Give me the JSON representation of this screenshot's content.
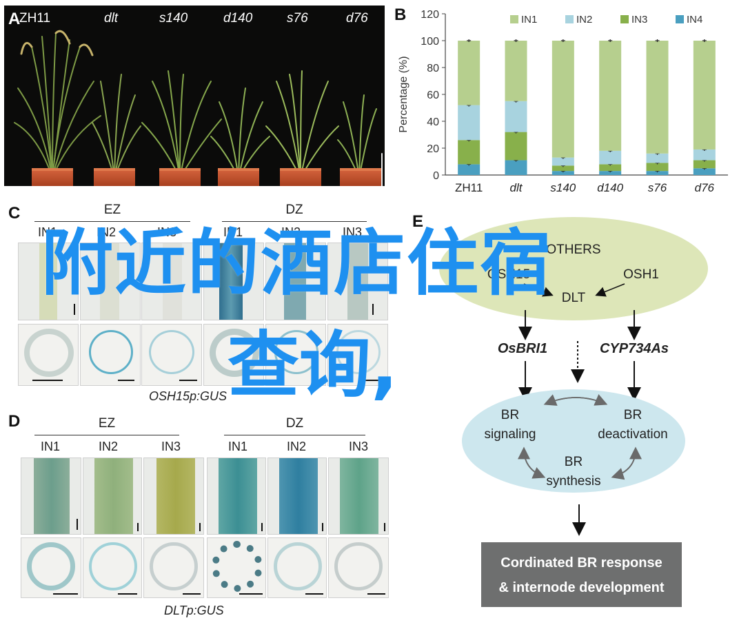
{
  "panels": {
    "A": "A",
    "B": "B",
    "C": "C",
    "D": "D",
    "E": "E"
  },
  "panelA": {
    "labels": [
      "ZH11",
      "dlt",
      "s140",
      "d140",
      "s76",
      "d76"
    ]
  },
  "chart_data": {
    "type": "bar",
    "stacked": true,
    "categories": [
      "ZH11",
      "dlt",
      "s140",
      "d140",
      "s76",
      "d76"
    ],
    "ylabel": "Percentage (%)",
    "ylim": [
      0,
      120
    ],
    "yticks": [
      0,
      20,
      40,
      60,
      80,
      100,
      120
    ],
    "legend_position": "top",
    "series": [
      {
        "name": "IN4",
        "color": "#4a9fc0",
        "values": [
          8,
          11,
          3,
          3,
          3,
          5
        ]
      },
      {
        "name": "IN3",
        "color": "#88b04b",
        "values": [
          18,
          21,
          4,
          5,
          6,
          6
        ]
      },
      {
        "name": "IN2",
        "color": "#a8d3df",
        "values": [
          26,
          23,
          6,
          10,
          7,
          8
        ]
      },
      {
        "name": "IN1",
        "color": "#b6cf8e",
        "values": [
          48,
          45,
          87,
          82,
          84,
          81
        ]
      }
    ]
  },
  "panelC": {
    "groups": [
      "EZ",
      "DZ"
    ],
    "columns": [
      "IN1",
      "IN2",
      "IN3",
      "IN1",
      "IN2",
      "IN3"
    ],
    "caption": "OSH15p:GUS"
  },
  "panelD": {
    "groups": [
      "EZ",
      "DZ"
    ],
    "columns": [
      "IN1",
      "IN2",
      "IN3",
      "IN1",
      "IN2",
      "IN3"
    ],
    "caption": "DLTp:GUS"
  },
  "panelE": {
    "top_nodes": [
      "OTHERS",
      "OSH15",
      "OSH1",
      "DLT"
    ],
    "genes": [
      "OsBRI1",
      "CYP734As"
    ],
    "cycle_nodes": [
      "BR",
      "signaling",
      "BR",
      "deactivation",
      "BR",
      "synthesis"
    ],
    "result_line1": "Cordinated BR response",
    "result_line2": "& internode development"
  },
  "overlay": {
    "line1": "附近的酒店住宿",
    "line2": "查询,"
  },
  "colors": {
    "overlay_text": "#1e90f0",
    "ellipse_top": "#dde6b8",
    "ellipse_bottom": "#cde7ee",
    "result_box": "#6e6f6f"
  }
}
